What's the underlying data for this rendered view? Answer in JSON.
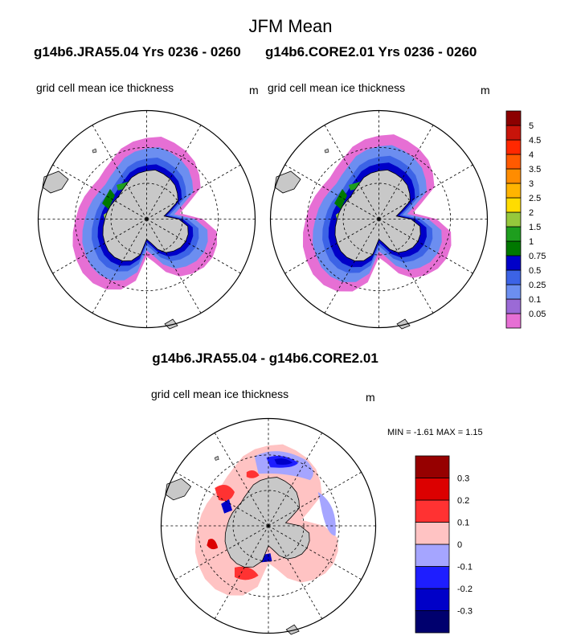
{
  "title": "JFM Mean",
  "run_titles": {
    "left": "g14b6.JRA55.04  Yrs 0236 - 0260",
    "right": "g14b6.CORE2.01  Yrs 0236 - 0260"
  },
  "panels": {
    "left": {
      "label": "grid cell mean ice thickness",
      "unit": "m"
    },
    "right": {
      "label": "grid cell mean ice thickness",
      "unit": "m"
    },
    "diff": {
      "label": "grid cell mean ice thickness",
      "unit": "m"
    }
  },
  "diff_title": "g14b6.JRA55.04 - g14b6.CORE2.01",
  "minmax": "MIN =  -1.61 MAX =   1.15",
  "colors": {
    "land": "#c8c8c8",
    "ocean": "#ffffff",
    "thickness_palette": [
      "#e66fd4",
      "#9b6ad6",
      "#6c8ef0",
      "#3c63e6",
      "#0000c8",
      "#007800",
      "#1e9e1e",
      "#96c83c",
      "#ffdc00",
      "#ffb400",
      "#ff8c00",
      "#ff5a00",
      "#ff2800",
      "#c8140a",
      "#8c0000"
    ],
    "diff_palette": [
      "#00006e",
      "#0000c8",
      "#1e1eff",
      "#a5a5ff",
      "#ffc3c3",
      "#ff3232",
      "#dc0000",
      "#960000"
    ]
  },
  "chart_data": [
    {
      "type": "heatmap",
      "projection": "south-polar stereographic",
      "title": "g14b6.JRA55.04  Yrs 0236 - 0260",
      "label": "grid cell mean ice thickness",
      "units": "m",
      "levels": [
        0.05,
        0.1,
        0.25,
        0.5,
        0.75,
        1,
        1.5,
        2,
        2.5,
        3,
        3.5,
        4,
        4.5,
        5
      ],
      "colorbar_ticks": [
        "0.05",
        "0.1",
        "0.25",
        "0.5",
        "0.75",
        "1",
        "1.5",
        "2",
        "2.5",
        "3",
        "3.5",
        "4",
        "4.5",
        "5"
      ]
    },
    {
      "type": "heatmap",
      "projection": "south-polar stereographic",
      "title": "g14b6.CORE2.01  Yrs 0236 - 0260",
      "label": "grid cell mean ice thickness",
      "units": "m",
      "levels": [
        0.05,
        0.1,
        0.25,
        0.5,
        0.75,
        1,
        1.5,
        2,
        2.5,
        3,
        3.5,
        4,
        4.5,
        5
      ],
      "colorbar_ticks": [
        "0.05",
        "0.1",
        "0.25",
        "0.5",
        "0.75",
        "1",
        "1.5",
        "2",
        "2.5",
        "3",
        "3.5",
        "4",
        "4.5",
        "5"
      ]
    },
    {
      "type": "heatmap",
      "projection": "south-polar stereographic",
      "title": "g14b6.JRA55.04 - g14b6.CORE2.01",
      "label": "grid cell mean ice thickness",
      "units": "m",
      "min": -1.61,
      "max": 1.15,
      "levels": [
        -0.3,
        -0.2,
        -0.1,
        0,
        0.1,
        0.2,
        0.3
      ],
      "colorbar_ticks": [
        "-0.3",
        "-0.2",
        "-0.1",
        "0",
        "0.1",
        "0.2",
        "0.3"
      ]
    }
  ]
}
